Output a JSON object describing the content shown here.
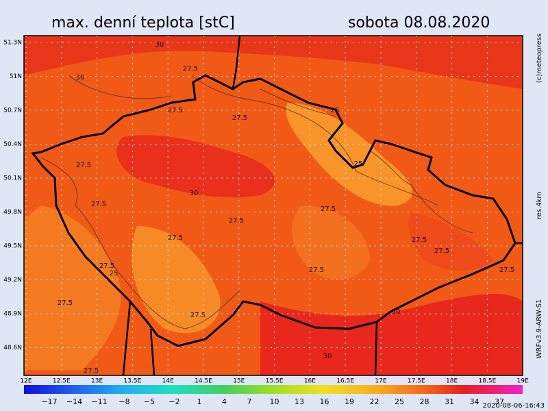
{
  "map": {
    "title": "max. denní teplota [stC]",
    "date": "sobota 08.08.2020",
    "credit": "(c)meteopress",
    "resolution": "res.4km",
    "model": "WRFv3.9-ARW-S1",
    "timestamp": "2020-08-06-16:43",
    "lat_labels": [
      "51.3N",
      "51N",
      "50.7N",
      "50.4N",
      "50.1N",
      "49.8N",
      "49.5N",
      "49.2N",
      "48.9N",
      "48.6N"
    ],
    "lon_labels": [
      "12E",
      "12.5E",
      "13E",
      "13.5E",
      "14E",
      "14.5E",
      "15E",
      "15.5E",
      "16E",
      "16.5E",
      "17E",
      "17.5E",
      "18E",
      "18.5E",
      "19E"
    ],
    "colorbar_labels": [
      "−17",
      "−14",
      "−11",
      "−8",
      "−5",
      "−2",
      "1",
      "4",
      "7",
      "10",
      "13",
      "16",
      "19",
      "22",
      "25",
      "28",
      "31",
      "34",
      "37"
    ],
    "contour_labels": [
      "30",
      "27.5",
      "30",
      "27.5",
      "27.5",
      "25",
      "25",
      "27.5",
      "30",
      "27.5",
      "27.5",
      "27.5",
      "27.5",
      "27.5",
      "27.5",
      "27.5",
      "25",
      "27.5",
      "27.5",
      "27.5",
      "27.5",
      "30",
      "30",
      "27.5"
    ]
  }
}
